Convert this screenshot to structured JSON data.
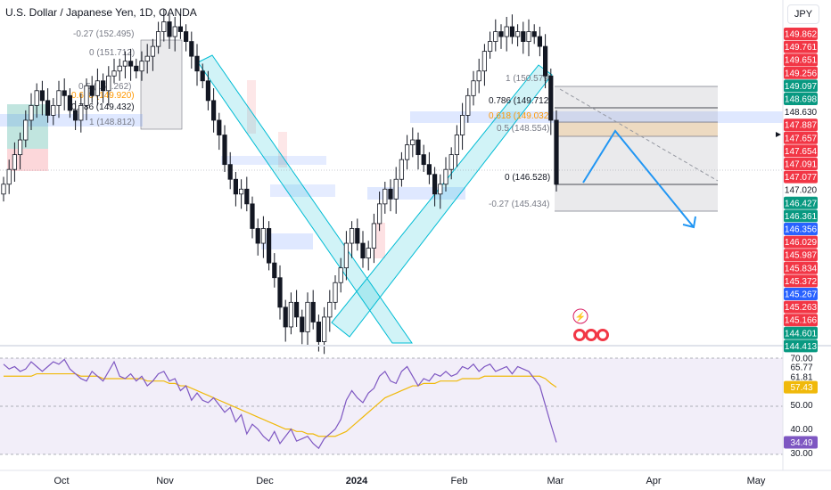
{
  "header": {
    "title": "U.S. Dollar / Japanese Yen, 1D, OANDA",
    "currency": "JPY"
  },
  "chart_data": [
    {
      "type": "candlestick",
      "symbol": "USDJPY",
      "timeframe": "1D",
      "price_axis": {
        "ylim": [
          144.2,
          150.5
        ],
        "labels": [
          {
            "value": 149.862,
            "color": "#f23645"
          },
          {
            "value": 149.761,
            "color": "#f23645"
          },
          {
            "value": 149.651,
            "color": "#f23645"
          },
          {
            "value": 149.256,
            "color": "#f23645"
          },
          {
            "value": 149.097,
            "color": "#089981"
          },
          {
            "value": 148.698,
            "color": "#089981"
          },
          {
            "value": 148.63,
            "text": "148.630",
            "color": "#131722"
          },
          {
            "value": 147.887,
            "color": "#f23645"
          },
          {
            "value": 147.657,
            "color": "#f23645"
          },
          {
            "value": 147.654,
            "color": "#f23645"
          },
          {
            "value": 147.091,
            "color": "#f23645"
          },
          {
            "value": 147.077,
            "color": "#f23645"
          },
          {
            "value": 147.02,
            "text": "147.020",
            "color": "#131722"
          },
          {
            "value": 146.427,
            "color": "#089981"
          },
          {
            "value": 146.361,
            "color": "#089981"
          },
          {
            "value": 146.356,
            "color": "#2962ff"
          },
          {
            "value": 146.029,
            "color": "#f23645"
          },
          {
            "value": 145.987,
            "color": "#f23645"
          },
          {
            "value": 145.834,
            "color": "#f23645"
          },
          {
            "value": 145.372,
            "color": "#f23645"
          },
          {
            "value": 145.267,
            "color": "#2962ff"
          },
          {
            "value": 145.263,
            "color": "#f23645"
          },
          {
            "value": 145.166,
            "color": "#f23645"
          },
          {
            "value": 144.601,
            "color": "#089981"
          },
          {
            "value": 144.413,
            "color": "#089981"
          }
        ]
      },
      "x_axis": {
        "labels": [
          "Oct",
          "Nov",
          "Dec",
          "2024",
          "Feb",
          "Mar",
          "Apr",
          "May"
        ]
      },
      "fib_left": [
        {
          "ratio": "-0.27",
          "price": "152.495"
        },
        {
          "ratio": "0",
          "price": "151.712"
        },
        {
          "ratio": "0.5",
          "price": "150.262"
        },
        {
          "ratio": "0.618",
          "price": "149.920"
        },
        {
          "ratio": "0.786",
          "price": "149.432"
        },
        {
          "ratio": "1",
          "price": "148.812"
        }
      ],
      "fib_right": [
        {
          "ratio": "1",
          "price": "150.579"
        },
        {
          "ratio": "0.786",
          "price": "149.712"
        },
        {
          "ratio": "0.618",
          "price": "149.032"
        },
        {
          "ratio": "0.5",
          "price": "148.554"
        },
        {
          "ratio": "0",
          "price": "146.528"
        },
        {
          "ratio": "-0.27",
          "price": "145.434"
        }
      ],
      "closes": [
        147.3,
        147.6,
        147.9,
        148.2,
        148.6,
        148.9,
        149.2,
        149.0,
        148.7,
        148.9,
        149.2,
        149.1,
        148.8,
        148.6,
        148.9,
        149.3,
        149.1,
        149.4,
        149.2,
        149.5,
        149.6,
        149.7,
        149.8,
        149.7,
        149.6,
        149.8,
        149.9,
        150.1,
        150.4,
        150.6,
        150.3,
        150.5,
        150.4,
        150.2,
        149.9,
        149.6,
        149.4,
        149.0,
        148.6,
        148.3,
        147.7,
        147.4,
        147.1,
        147.2,
        146.9,
        146.4,
        146.1,
        146.4,
        145.7,
        145.4,
        144.8,
        144.4,
        144.9,
        144.6,
        144.3,
        144.9,
        144.5,
        144.1,
        144.6,
        144.9,
        145.3,
        145.6,
        146.1,
        146.4,
        146.1,
        145.8,
        146.0,
        146.5,
        146.9,
        147.2,
        147.0,
        147.4,
        147.8,
        148.1,
        148.2,
        147.9,
        147.7,
        147.5,
        147.1,
        147.3,
        147.6,
        147.9,
        148.3,
        148.7,
        149.1,
        149.4,
        149.6,
        150.0,
        150.2,
        150.4,
        150.3,
        150.5,
        150.3,
        150.4,
        150.2,
        150.4,
        150.3,
        150.1,
        149.5,
        148.6,
        147.3
      ],
      "rsi": {
        "label_values": [
          {
            "value": 70.0,
            "text": "70.00",
            "color": "#131722"
          },
          {
            "value": 65.77,
            "text": "65.77",
            "color": "#131722"
          },
          {
            "value": 61.81,
            "text": "61.81",
            "color": "#131722"
          },
          {
            "value": 57.43,
            "text": "57.43",
            "color": "#f0b90b"
          },
          {
            "value": 50.0,
            "text": "50.00",
            "color": "#131722"
          },
          {
            "value": 40.0,
            "text": "40.00",
            "color": "#131722"
          },
          {
            "value": 34.49,
            "text": "34.49",
            "color": "#7e57c2"
          },
          {
            "value": 30.0,
            "text": "30.00",
            "color": "#131722"
          }
        ],
        "ylim": [
          28,
          71
        ],
        "rsi_values": [
          67,
          65,
          66,
          64,
          65,
          68,
          66,
          64,
          66,
          68,
          67,
          69,
          65,
          63,
          61,
          60,
          64,
          62,
          60,
          64,
          68,
          62,
          61,
          63,
          60,
          62,
          58,
          60,
          63,
          64,
          60,
          61,
          56,
          58,
          52,
          55,
          52,
          51,
          53,
          50,
          47,
          49,
          43,
          46,
          38,
          42,
          40,
          37,
          35,
          39,
          34,
          37,
          40,
          35,
          36,
          37,
          34,
          32,
          36,
          38,
          40,
          44,
          52,
          56,
          53,
          51,
          55,
          57,
          62,
          64,
          60,
          59,
          64,
          66,
          62,
          58,
          61,
          60,
          63,
          62,
          64,
          62,
          63,
          66,
          65,
          67,
          64,
          66,
          67,
          64,
          65,
          66,
          63,
          66,
          65,
          64,
          61,
          58,
          50,
          42,
          34.49
        ],
        "ma_values": [
          62,
          62,
          62,
          62,
          62,
          62,
          63,
          63,
          63,
          63,
          63,
          63,
          63,
          63,
          62,
          62,
          62,
          62,
          61,
          61,
          61,
          61,
          61,
          61,
          61,
          61,
          60,
          60,
          60,
          60,
          59,
          59,
          58,
          58,
          57,
          56,
          55,
          54,
          53,
          52,
          51,
          50,
          49,
          48,
          47,
          46,
          45,
          44,
          43,
          42,
          41,
          40,
          40,
          39,
          39,
          38,
          38,
          37,
          37,
          37,
          37,
          38,
          39,
          41,
          43,
          45,
          47,
          49,
          51,
          53,
          54,
          55,
          56,
          57,
          58,
          58,
          59,
          59,
          59,
          60,
          60,
          60,
          60,
          61,
          61,
          61,
          61,
          62,
          62,
          62,
          62,
          62,
          62,
          62,
          62,
          62,
          62,
          62,
          61,
          59,
          57.43
        ]
      }
    }
  ]
}
